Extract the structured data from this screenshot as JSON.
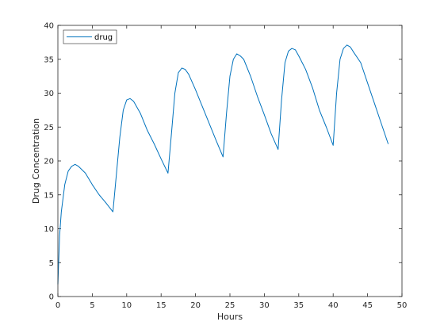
{
  "chart_data": {
    "type": "line",
    "title": "",
    "xlabel": "Hours",
    "ylabel": "Drug Concentration",
    "xlim": [
      0,
      50
    ],
    "ylim": [
      0,
      40
    ],
    "xticks": [
      0,
      5,
      10,
      15,
      20,
      25,
      30,
      35,
      40,
      45,
      50
    ],
    "yticks": [
      0,
      5,
      10,
      15,
      20,
      25,
      30,
      35,
      40
    ],
    "grid": false,
    "legend": "top-left",
    "series": [
      {
        "name": "drug",
        "color": "#0072BD",
        "x": [
          0,
          0.25,
          0.5,
          1,
          1.5,
          2,
          2.5,
          3,
          4,
          5,
          6,
          7,
          8,
          8.5,
          9,
          9.5,
          10,
          10.5,
          11,
          12,
          13,
          14,
          15,
          16,
          16.5,
          17,
          17.5,
          18,
          18.5,
          19,
          20,
          21,
          22,
          23,
          24,
          24.5,
          25,
          25.5,
          26,
          26.5,
          27,
          28,
          29,
          30,
          31,
          32,
          32.5,
          33,
          33.5,
          34,
          34.5,
          35,
          36,
          37,
          38,
          39,
          40,
          40.5,
          41,
          41.5,
          42,
          42.5,
          43,
          44,
          45,
          46,
          47,
          48
        ],
        "y": [
          1.8,
          9.0,
          12.5,
          16.5,
          18.5,
          19.2,
          19.5,
          19.2,
          18.2,
          16.5,
          15.0,
          13.8,
          12.5,
          18.0,
          23.5,
          27.5,
          29.0,
          29.2,
          28.8,
          27.0,
          24.5,
          22.5,
          20.3,
          18.2,
          24.0,
          30.0,
          33.0,
          33.7,
          33.5,
          32.8,
          30.5,
          28.0,
          25.5,
          23.0,
          20.6,
          27.0,
          32.5,
          35.0,
          35.8,
          35.5,
          35.0,
          32.5,
          29.5,
          26.8,
          24.0,
          21.7,
          29.0,
          34.5,
          36.2,
          36.6,
          36.4,
          35.5,
          33.5,
          30.8,
          27.5,
          25.0,
          22.3,
          30.0,
          35.0,
          36.6,
          37.1,
          36.8,
          36.0,
          34.5,
          31.5,
          28.5,
          25.5,
          22.5
        ]
      }
    ]
  }
}
